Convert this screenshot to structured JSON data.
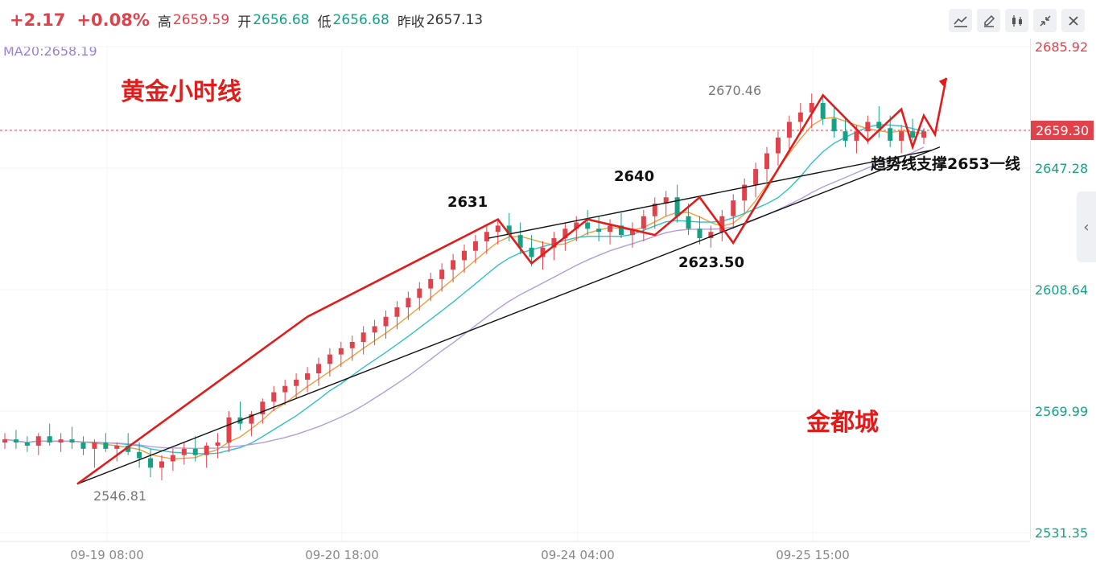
{
  "header": {
    "change": "+2.17",
    "change_pct": "+0.08%",
    "high_label": "高",
    "high_value": "2659.59",
    "open_label": "开",
    "open_value": "2656.68",
    "low_label": "低",
    "low_value": "2656.68",
    "prev_close_label": "昨收",
    "prev_close_value": "2657.13"
  },
  "toolbar": {
    "icons": [
      "line-tool-icon",
      "pen-edit-icon",
      "candlestick-icon",
      "collapse-icon",
      "close-icon"
    ]
  },
  "ma_readout": "MA20:2658.19",
  "colors": {
    "up": "#e0424c",
    "down": "#16a085",
    "ma5": "#f39c3d",
    "ma10": "#2fc0c8",
    "ma20": "#b39ddb",
    "annotation": "#e21b1b"
  },
  "chart_data": {
    "type": "candlestick",
    "ylim": [
      2531.35,
      2685.92
    ],
    "y_ticks": [
      "2685.92",
      "2647.28",
      "2608.64",
      "2569.99",
      "2531.35"
    ],
    "x_ticks": [
      "09-19 08:00",
      "09-20 18:00",
      "09-24 04:00",
      "09-25 15:00"
    ],
    "current_price": "2659.30",
    "annotations": {
      "title": "黄金小时线",
      "watermark": "金都城",
      "trend_support": "趋势线支撑2653一线",
      "high_label": "2670.46",
      "low_label": "2546.81",
      "levels": [
        "2631",
        "2640",
        "2623.50"
      ]
    },
    "candles": [
      [
        2560,
        2563,
        2558,
        2561
      ],
      [
        2561,
        2564,
        2558,
        2560
      ],
      [
        2560,
        2562,
        2557,
        2559
      ],
      [
        2559,
        2563,
        2556,
        2562
      ],
      [
        2562,
        2566,
        2559,
        2560
      ],
      [
        2560,
        2563,
        2557,
        2561
      ],
      [
        2561,
        2565,
        2558,
        2560
      ],
      [
        2560,
        2562,
        2556,
        2558
      ],
      [
        2558,
        2561,
        2552,
        2560
      ],
      [
        2560,
        2563,
        2557,
        2558
      ],
      [
        2558,
        2560,
        2554,
        2559
      ],
      [
        2559,
        2563,
        2556,
        2557
      ],
      [
        2557,
        2560,
        2552,
        2555
      ],
      [
        2555,
        2558,
        2549,
        2552
      ],
      [
        2552,
        2556,
        2548,
        2554
      ],
      [
        2554,
        2558,
        2551,
        2556
      ],
      [
        2556,
        2560,
        2553,
        2558
      ],
      [
        2558,
        2562,
        2554,
        2556
      ],
      [
        2556,
        2560,
        2552,
        2559
      ],
      [
        2559,
        2563,
        2555,
        2560
      ],
      [
        2560,
        2570,
        2557,
        2568
      ],
      [
        2568,
        2573,
        2564,
        2566
      ],
      [
        2566,
        2570,
        2562,
        2569
      ],
      [
        2569,
        2574,
        2566,
        2573
      ],
      [
        2573,
        2578,
        2570,
        2576
      ],
      [
        2576,
        2580,
        2572,
        2578
      ],
      [
        2578,
        2582,
        2574,
        2580
      ],
      [
        2580,
        2584,
        2576,
        2582
      ],
      [
        2582,
        2587,
        2578,
        2585
      ],
      [
        2585,
        2590,
        2581,
        2588
      ],
      [
        2588,
        2592,
        2584,
        2590
      ],
      [
        2590,
        2594,
        2586,
        2592
      ],
      [
        2592,
        2597,
        2588,
        2595
      ],
      [
        2595,
        2599,
        2591,
        2597
      ],
      [
        2597,
        2602,
        2593,
        2600
      ],
      [
        2600,
        2605,
        2596,
        2603
      ],
      [
        2603,
        2608,
        2599,
        2606
      ],
      [
        2606,
        2611,
        2602,
        2609
      ],
      [
        2609,
        2614,
        2605,
        2612
      ],
      [
        2612,
        2617,
        2608,
        2615
      ],
      [
        2615,
        2620,
        2611,
        2618
      ],
      [
        2618,
        2623,
        2614,
        2621
      ],
      [
        2621,
        2626,
        2617,
        2624
      ],
      [
        2624,
        2629,
        2620,
        2627
      ],
      [
        2627,
        2631,
        2623,
        2629
      ],
      [
        2629,
        2633,
        2624,
        2626
      ],
      [
        2626,
        2630,
        2620,
        2622
      ],
      [
        2622,
        2626,
        2616,
        2619
      ],
      [
        2619,
        2624,
        2615,
        2622
      ],
      [
        2622,
        2627,
        2618,
        2625
      ],
      [
        2625,
        2630,
        2621,
        2628
      ],
      [
        2628,
        2632,
        2624,
        2630
      ],
      [
        2630,
        2634,
        2626,
        2628
      ],
      [
        2628,
        2632,
        2624,
        2627
      ],
      [
        2627,
        2631,
        2623,
        2629
      ],
      [
        2629,
        2633,
        2625,
        2626
      ],
      [
        2626,
        2630,
        2622,
        2628
      ],
      [
        2628,
        2634,
        2624,
        2632
      ],
      [
        2632,
        2638,
        2628,
        2636
      ],
      [
        2636,
        2640,
        2632,
        2638
      ],
      [
        2638,
        2642,
        2630,
        2632
      ],
      [
        2632,
        2636,
        2626,
        2628
      ],
      [
        2628,
        2632,
        2623,
        2625
      ],
      [
        2625,
        2629,
        2622,
        2627
      ],
      [
        2627,
        2634,
        2624,
        2632
      ],
      [
        2632,
        2639,
        2628,
        2637
      ],
      [
        2637,
        2644,
        2633,
        2642
      ],
      [
        2642,
        2649,
        2638,
        2647
      ],
      [
        2647,
        2654,
        2643,
        2652
      ],
      [
        2652,
        2659,
        2648,
        2657
      ],
      [
        2657,
        2664,
        2653,
        2662
      ],
      [
        2662,
        2668,
        2658,
        2665
      ],
      [
        2665,
        2671,
        2660,
        2668
      ],
      [
        2668,
        2670,
        2661,
        2663
      ],
      [
        2663,
        2667,
        2657,
        2659
      ],
      [
        2659,
        2663,
        2654,
        2656
      ],
      [
        2656,
        2661,
        2652,
        2659
      ],
      [
        2659,
        2664,
        2655,
        2662
      ],
      [
        2662,
        2667,
        2657,
        2660
      ],
      [
        2660,
        2664,
        2654,
        2656
      ],
      [
        2656,
        2661,
        2652,
        2659
      ],
      [
        2659,
        2663,
        2656,
        2657
      ],
      [
        2657,
        2660,
        2655,
        2659
      ]
    ]
  }
}
